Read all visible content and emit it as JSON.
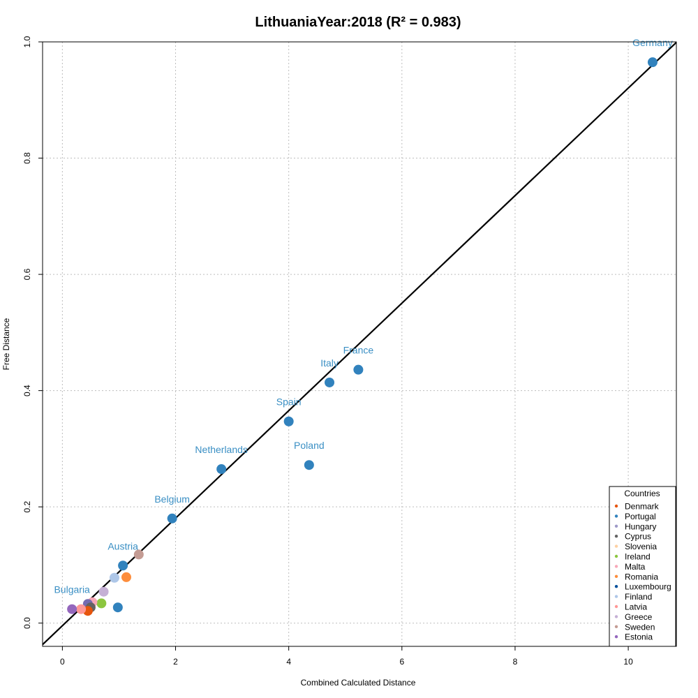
{
  "chart_data": {
    "type": "scatter",
    "title": "LithuaniaYear:2018 (R² = 0.983)",
    "xlabel": "Combined Calculated Distance",
    "ylabel": "Free Distance",
    "xlim": [
      -0.35,
      10.85
    ],
    "ylim": [
      -0.04,
      1.0
    ],
    "xticks": [
      0,
      2,
      4,
      6,
      8,
      10
    ],
    "yticks": [
      0.0,
      0.2,
      0.4,
      0.6,
      0.8,
      1.0
    ],
    "xtick_labels": [
      "0",
      "2",
      "4",
      "6",
      "8",
      "10"
    ],
    "ytick_labels": [
      "0.0",
      "0.2",
      "0.4",
      "0.6",
      "0.8",
      "1.0"
    ],
    "grid": true,
    "regression_line": {
      "slope": 0.0925,
      "intercept": -0.0045
    },
    "points": [
      {
        "x": 10.43,
        "y": 0.965,
        "color": "#3182bd",
        "label": "Germany"
      },
      {
        "x": 5.23,
        "y": 0.436,
        "color": "#3182bd",
        "label": "France"
      },
      {
        "x": 4.72,
        "y": 0.414,
        "color": "#3182bd",
        "label": "Italy"
      },
      {
        "x": 4.0,
        "y": 0.347,
        "color": "#3182bd",
        "label": "Spain"
      },
      {
        "x": 4.36,
        "y": 0.272,
        "color": "#3182bd",
        "label": "Poland"
      },
      {
        "x": 2.81,
        "y": 0.265,
        "color": "#3182bd",
        "label": "Netherlands"
      },
      {
        "x": 1.94,
        "y": 0.18,
        "color": "#3182bd",
        "label": "Belgium"
      },
      {
        "x": 1.07,
        "y": 0.099,
        "color": "#3182bd",
        "label": "Austria"
      },
      {
        "x": 0.98,
        "y": 0.027,
        "color": "#3182bd",
        "label": ""
      },
      {
        "x": 1.35,
        "y": 0.118,
        "color": "#c49c94",
        "label": ""
      },
      {
        "x": 1.13,
        "y": 0.079,
        "color": "#fd8d3c",
        "label": ""
      },
      {
        "x": 0.92,
        "y": 0.078,
        "color": "#aec7e8",
        "label": ""
      },
      {
        "x": 0.73,
        "y": 0.054,
        "color": "#c5b0d5",
        "label": ""
      },
      {
        "x": 0.69,
        "y": 0.034,
        "color": "#8cc63f",
        "label": ""
      },
      {
        "x": 0.53,
        "y": 0.036,
        "color": "#f7a8b8",
        "label": ""
      },
      {
        "x": 0.45,
        "y": 0.033,
        "color": "#756bb1",
        "label": ""
      },
      {
        "x": 0.5,
        "y": 0.027,
        "color": "#636363",
        "label": ""
      },
      {
        "x": 0.45,
        "y": 0.021,
        "color": "#e6550d",
        "label": ""
      },
      {
        "x": 0.33,
        "y": 0.024,
        "color": "#ff9896",
        "label": ""
      },
      {
        "x": 0.17,
        "y": 0.024,
        "color": "#9467bd",
        "label": "Bulgaria"
      }
    ],
    "legend": {
      "title": "Countries",
      "placement": "bottom-right",
      "items": [
        {
          "name": "Denmark",
          "color": "#e6550d"
        },
        {
          "name": "Portugal",
          "color": "#3182bd"
        },
        {
          "name": "Hungary",
          "color": "#9e9ac8"
        },
        {
          "name": "Cyprus",
          "color": "#636363"
        },
        {
          "name": "Slovenia",
          "color": "#fdd0a2"
        },
        {
          "name": "Ireland",
          "color": "#8cc63f"
        },
        {
          "name": "Malta",
          "color": "#f7a8b8"
        },
        {
          "name": "Romania",
          "color": "#fd8d3c"
        },
        {
          "name": "Luxembourg",
          "color": "#08519c"
        },
        {
          "name": "Finland",
          "color": "#aec7e8"
        },
        {
          "name": "Latvia",
          "color": "#ff9896"
        },
        {
          "name": "Greece",
          "color": "#c5b0d5"
        },
        {
          "name": "Sweden",
          "color": "#c49c94"
        },
        {
          "name": "Estonia",
          "color": "#9467bd"
        }
      ]
    }
  }
}
